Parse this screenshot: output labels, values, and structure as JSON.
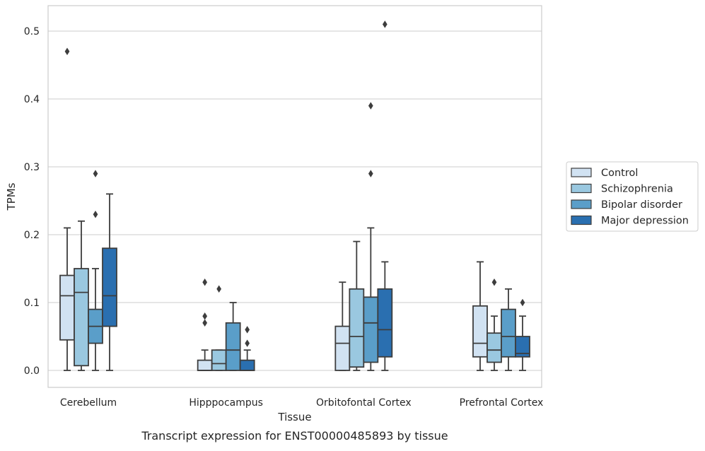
{
  "chart_data": {
    "type": "box",
    "xlabel": "Tissue",
    "ylabel": "TPMs",
    "caption": "Transcript expression for ENST00000485893 by tissue",
    "ylim": [
      -0.025,
      0.537
    ],
    "yticks": [
      0.0,
      0.1,
      0.2,
      0.3,
      0.4,
      0.5
    ],
    "ytick_labels": [
      "0.0",
      "0.1",
      "0.2",
      "0.3",
      "0.4",
      "0.5"
    ],
    "grid": "horizontal",
    "legend_position": "right",
    "categories": [
      "Cerebellum",
      "Hipppocampus",
      "Orbitofontal Cortex",
      "Prefrontal Cortex"
    ],
    "series": [
      {
        "name": "Control",
        "color": "#d1e2f2",
        "boxes": [
          {
            "whislo": 0.0,
            "q1": 0.045,
            "med": 0.11,
            "q3": 0.14,
            "whishi": 0.21,
            "fliers": [
              0.47
            ]
          },
          {
            "whislo": 0.0,
            "q1": 0.0,
            "med": 0.0,
            "q3": 0.015,
            "whishi": 0.03,
            "fliers": [
              0.07,
              0.08,
              0.13
            ]
          },
          {
            "whislo": 0.0,
            "q1": 0.0,
            "med": 0.04,
            "q3": 0.065,
            "whishi": 0.13,
            "fliers": []
          },
          {
            "whislo": 0.0,
            "q1": 0.02,
            "med": 0.04,
            "q3": 0.095,
            "whishi": 0.16,
            "fliers": []
          }
        ]
      },
      {
        "name": "Schizophrenia",
        "color": "#9ac8e0",
        "boxes": [
          {
            "whislo": 0.0,
            "q1": 0.007,
            "med": 0.115,
            "q3": 0.15,
            "whishi": 0.22,
            "fliers": []
          },
          {
            "whislo": 0.0,
            "q1": 0.0,
            "med": 0.01,
            "q3": 0.03,
            "whishi": 0.03,
            "fliers": [
              0.12
            ]
          },
          {
            "whislo": 0.0,
            "q1": 0.005,
            "med": 0.05,
            "q3": 0.12,
            "whishi": 0.19,
            "fliers": []
          },
          {
            "whislo": 0.0,
            "q1": 0.012,
            "med": 0.03,
            "q3": 0.055,
            "whishi": 0.08,
            "fliers": [
              0.13
            ]
          }
        ]
      },
      {
        "name": "Bipolar disorder",
        "color": "#5a9ec9",
        "boxes": [
          {
            "whislo": 0.0,
            "q1": 0.04,
            "med": 0.065,
            "q3": 0.09,
            "whishi": 0.15,
            "fliers": [
              0.23,
              0.29
            ]
          },
          {
            "whislo": 0.0,
            "q1": 0.0,
            "med": 0.03,
            "q3": 0.07,
            "whishi": 0.1,
            "fliers": []
          },
          {
            "whislo": 0.0,
            "q1": 0.012,
            "med": 0.07,
            "q3": 0.108,
            "whishi": 0.21,
            "fliers": [
              0.29,
              0.39
            ]
          },
          {
            "whislo": 0.0,
            "q1": 0.02,
            "med": 0.05,
            "q3": 0.09,
            "whishi": 0.12,
            "fliers": []
          }
        ]
      },
      {
        "name": "Major depression",
        "color": "#2a6fb0",
        "boxes": [
          {
            "whislo": 0.0,
            "q1": 0.065,
            "med": 0.11,
            "q3": 0.18,
            "whishi": 0.26,
            "fliers": []
          },
          {
            "whislo": 0.0,
            "q1": 0.0,
            "med": 0.0,
            "q3": 0.015,
            "whishi": 0.03,
            "fliers": [
              0.04,
              0.06
            ]
          },
          {
            "whislo": 0.0,
            "q1": 0.02,
            "med": 0.06,
            "q3": 0.12,
            "whishi": 0.16,
            "fliers": [
              0.51
            ]
          },
          {
            "whislo": 0.0,
            "q1": 0.02,
            "med": 0.025,
            "q3": 0.05,
            "whishi": 0.08,
            "fliers": [
              0.1
            ]
          }
        ]
      }
    ]
  }
}
